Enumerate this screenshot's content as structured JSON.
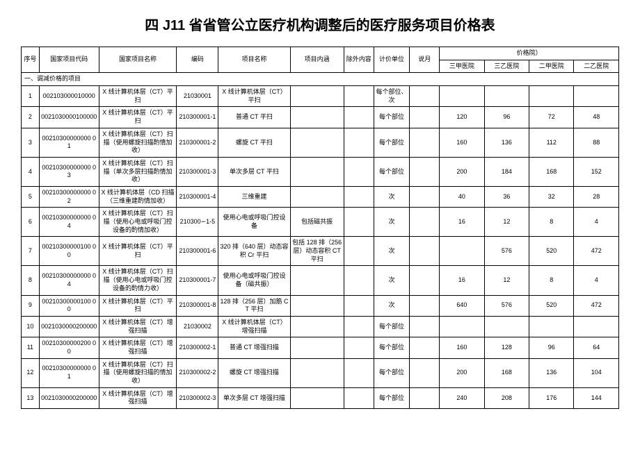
{
  "title": "四 J11 省省管公立医疗机构调整后的医疗服务项目价格表",
  "headers": {
    "seq": "序号",
    "national_code": "国家项目代码",
    "national_name": "国家项目名称",
    "code": "编码",
    "project_name": "项目名称",
    "project_content": "项目内涵",
    "exclude": "除外内容",
    "unit": "计价单位",
    "note": "说月",
    "price_group": "价格院）",
    "p1": "三甲医院",
    "p2": "三乙医院",
    "p3": "二甲医院",
    "p4": "二乙医院"
  },
  "section": "一、调减价格的项目",
  "rows": [
    {
      "seq": "1",
      "ncode": "002103000010000",
      "nname": "X 线计算机体层（CT）平扫",
      "code": "21030001",
      "pname": "X 线计算机体层（CT）平扫",
      "pcont": "",
      "excl": "",
      "unit": "每个部位、次",
      "note": "",
      "p1": "",
      "p2": "",
      "p3": "",
      "p4": ""
    },
    {
      "seq": "2",
      "ncode": "0021030000100000",
      "nname": "X 线计算机体层（CT）平扫",
      "code": "210300001-1",
      "pname": "普通 CT 平扫",
      "pcont": "",
      "excl": "",
      "unit": "每个部位",
      "note": "",
      "p1": "120",
      "p2": "96",
      "p3": "72",
      "p4": "48"
    },
    {
      "seq": "3",
      "ncode": "00210300000000 01",
      "nname": "X 线计算机体层（CT）扫描（使用螺旋扫描酌情加收）",
      "code": "210300001-2",
      "pname": "螺旋 CT 平扫",
      "pcont": "",
      "excl": "",
      "unit": "每个部位",
      "note": "",
      "p1": "160",
      "p2": "136",
      "p3": "112",
      "p4": "88"
    },
    {
      "seq": "4",
      "ncode": "00210300000000 03",
      "nname": "X 线计算机体层（CT）扫描（单次多层扫描酌情加收）",
      "code": "210300001-3",
      "pname": "单次多层 CT 平扫",
      "pcont": "",
      "excl": "",
      "unit": "每个部位",
      "note": "",
      "p1": "200",
      "p2": "184",
      "p3": "168",
      "p4": "152"
    },
    {
      "seq": "5",
      "ncode": "00210300000000 02",
      "nname": "X 线计算机体层（CD 扫描（三维重建酌情加收）",
      "code": "210300001-4",
      "pname": "三维重建",
      "pcont": "",
      "excl": "",
      "unit": "次",
      "note": "",
      "p1": "40",
      "p2": "36",
      "p3": "32",
      "p4": "28"
    },
    {
      "seq": "6",
      "ncode": "00210300000000 04",
      "nname": "X 线计算机体层（CT）扫描（使用心电或呼吸门控设备的酌情加收）",
      "code": "210300∽1-5",
      "pname": "使用心电或呼吸门控设备",
      "pcont": "包括磁共振",
      "excl": "",
      "unit": "次",
      "note": "",
      "p1": "16",
      "p2": "12",
      "p3": "8",
      "p4": "4"
    },
    {
      "seq": "7",
      "ncode": "00210300000100 00",
      "nname": "X 线计算机体层（CT）平扫",
      "code": "210300001-6",
      "pname": "320 排（640 层）动态容积 Cr 平扫",
      "pcont": "包括 128 排（256 层）动态容积 CT 平扫",
      "excl": "",
      "unit": "次",
      "note": "",
      "p1": "",
      "p2": "576",
      "p3": "520",
      "p4": "472"
    },
    {
      "seq": "8",
      "ncode": "00210300000000 04",
      "nname": "X 线计算机体层（CT）扫描（使用心电或呼吸门控设备的酌情力收）",
      "code": "210300001-7",
      "pname": "使用心电或呼吸门控设备（磁共振）",
      "pcont": "",
      "excl": "",
      "unit": "次",
      "note": "",
      "p1": "16",
      "p2": "12",
      "p3": "8",
      "p4": "4"
    },
    {
      "seq": "9",
      "ncode": "00210300000100 00",
      "nname": "X 线计算机体层（CT）平扫",
      "code": "210300001-8",
      "pname": "128 排（256 层）加筋 CT 平扫",
      "pcont": "",
      "excl": "",
      "unit": "次",
      "note": "",
      "p1": "640",
      "p2": "576",
      "p3": "520",
      "p4": "472"
    },
    {
      "seq": "10",
      "ncode": "0021030000200000",
      "nname": "X 线计算机体层（CT）增强扫描",
      "code": "21030002",
      "pname": "X 线计算机体层（CT）增强扫描",
      "pcont": "",
      "excl": "",
      "unit": "每个部位",
      "note": "",
      "p1": "",
      "p2": "",
      "p3": "",
      "p4": ""
    },
    {
      "seq": "11",
      "ncode": "00210300000200 00",
      "nname": "X 线计算机体层（CT）增强扫描",
      "code": "210300002-1",
      "pname": "普通 CT 增强扫描",
      "pcont": "",
      "excl": "",
      "unit": "每个部位",
      "note": "",
      "p1": "160",
      "p2": "128",
      "p3": "96",
      "p4": "64"
    },
    {
      "seq": "12",
      "ncode": "00210300000000 01",
      "nname": "X 线计算机体层（CT）扫描（使用螺旋扫描的情加收）",
      "code": "210300002-2",
      "pname": "螺旋 CT 增强扫描",
      "pcont": "",
      "excl": "",
      "unit": "每个部位",
      "note": "",
      "p1": "200",
      "p2": "168",
      "p3": "136",
      "p4": "104"
    },
    {
      "seq": "13",
      "ncode": "0021030000200000",
      "nname": "X 线计算机体层（CT）增强扫描",
      "code": "210300002-3",
      "pname": "单次多层 CT 增强扫描",
      "pcont": "",
      "excl": "",
      "unit": "每个部位",
      "note": "",
      "p1": "240",
      "p2": "208",
      "p3": "176",
      "p4": "144"
    }
  ]
}
